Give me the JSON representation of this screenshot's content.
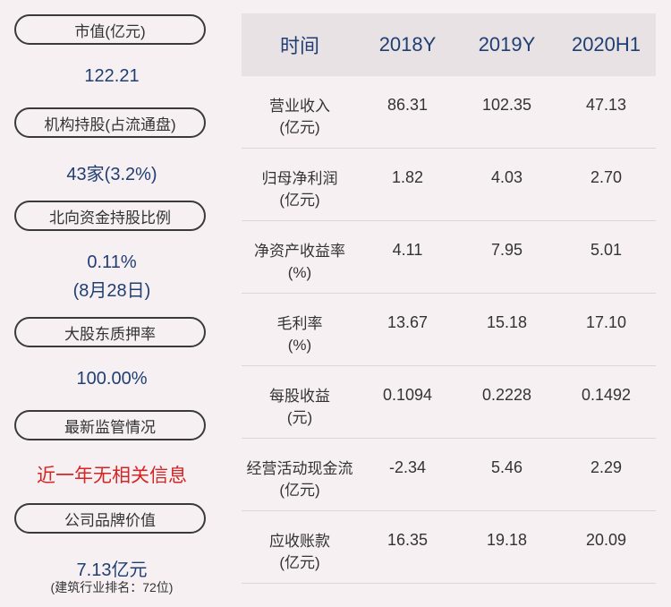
{
  "left": {
    "items": [
      {
        "label": "市值(亿元)",
        "value": "122.21"
      },
      {
        "label": "机构持股(占流通盘)",
        "value": "43家(3.2%)"
      },
      {
        "label": "北向资金持股比例",
        "value": "0.11%",
        "value2": "(8月28日)"
      },
      {
        "label": "大股东质押率",
        "value": "100.00%"
      },
      {
        "label": "最新监管情况",
        "value": "近一年无相关信息"
      },
      {
        "label": "公司品牌价值",
        "value": "7.13亿元",
        "note": "(建筑行业排名：72位)"
      }
    ]
  },
  "table": {
    "headers": [
      "时间",
      "2018Y",
      "2019Y",
      "2020H1"
    ],
    "rows": [
      {
        "label1": "营业收入",
        "label2": "(亿元)",
        "values": [
          "86.31",
          "102.35",
          "47.13"
        ]
      },
      {
        "label1": "归母净利润",
        "label2": "(亿元)",
        "values": [
          "1.82",
          "4.03",
          "2.70"
        ]
      },
      {
        "label1": "净资产收益率",
        "label2": "(%)",
        "values": [
          "4.11",
          "7.95",
          "5.01"
        ]
      },
      {
        "label1": "毛利率",
        "label2": "(%)",
        "values": [
          "13.67",
          "15.18",
          "17.10"
        ]
      },
      {
        "label1": "每股收益",
        "label2": "(元)",
        "values": [
          "0.1094",
          "0.2228",
          "0.1492"
        ]
      },
      {
        "label1": "经营活动现金流",
        "label2": "(亿元)",
        "values": [
          "-2.34",
          "5.46",
          "2.29"
        ]
      },
      {
        "label1": "应收账款",
        "label2": "(亿元)",
        "values": [
          "16.35",
          "19.18",
          "20.09"
        ]
      }
    ]
  }
}
